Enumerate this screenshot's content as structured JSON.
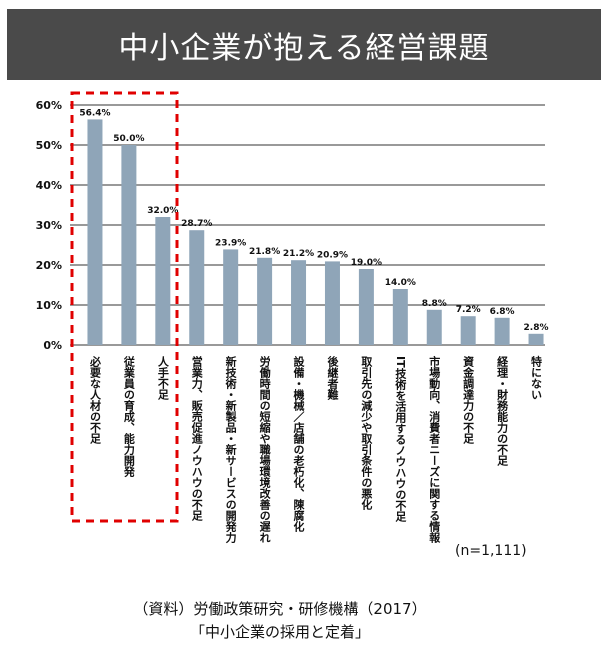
{
  "header": {
    "title": "中小企業が抱える経営課題"
  },
  "note": "(n=1,111)",
  "source": {
    "line1": "（資料）労働政策研究・研修機構（2017）",
    "line2": "「中小企業の採用と定着」"
  },
  "colors": {
    "bar": "#8fa5b8",
    "highlight": "#e00000",
    "header_bg": "#4a4a4a",
    "grid": "#333333"
  },
  "chart_data": {
    "type": "bar",
    "categories": [
      "必要な人材の不足",
      "従業員の育成、能力開発",
      "人手不足",
      "営業力、販売促進ノウハウの不足",
      "新技術・新製品・新サービスの開発力",
      "労働時間の短縮や職場環境改善の遅れ",
      "設備・機械／店舗の老朽化、陳腐化",
      "後継者難",
      "取引先の減少や取引条件の悪化",
      "IT技術を活用するノウハウの不足",
      "市場動向、消費者ニーズに関する情報",
      "資金調達力の不足",
      "経理・財務能力の不足",
      "特にない"
    ],
    "values": [
      56.4,
      50.0,
      32.0,
      28.7,
      23.9,
      21.8,
      21.2,
      20.9,
      19.0,
      14.0,
      8.8,
      7.2,
      6.8,
      2.8
    ],
    "value_labels": [
      "56.4%",
      "50.0%",
      "32.0%",
      "28.7%",
      "23.9%",
      "21.8%",
      "21.2%",
      "20.9%",
      "19.0%",
      "14.0%",
      "8.8%",
      "7.2%",
      "6.8%",
      "2.8%"
    ],
    "yticks": [
      "0%",
      "10%",
      "20%",
      "30%",
      "40%",
      "50%",
      "60%"
    ],
    "ylim": [
      0,
      60
    ],
    "highlighted_categories": 3,
    "grid": true
  }
}
